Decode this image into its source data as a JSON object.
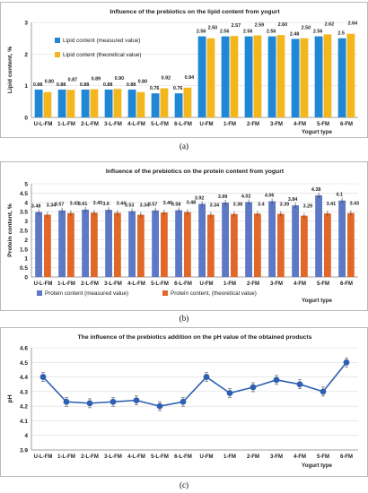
{
  "chart_data": [
    {
      "type": "bar",
      "title": "Influence of the prebiotics on the lipid content from yogurt",
      "xlabel": "Yogurt type",
      "ylabel": "Lipid content, %",
      "ylim": [
        0,
        3
      ],
      "yticks": [
        "0",
        "1",
        "2",
        "3"
      ],
      "categories": [
        "U-L-FM",
        "1-L-FM",
        "2-L-FM",
        "3-L-FM",
        "4-L-FM",
        "5-L-FM",
        "6-L-FM",
        "U-FM",
        "1-FM",
        "2-FM",
        "3-FM",
        "4-FM",
        "5-FM",
        "6-FM"
      ],
      "series": [
        {
          "name": "Lipid content (measured value)",
          "values": [
            0.88,
            0.88,
            0.88,
            0.88,
            0.88,
            0.76,
            0.76,
            2.56,
            2.56,
            2.56,
            2.56,
            2.48,
            2.56,
            2.5
          ],
          "labels": [
            "0.88",
            "0.88",
            "0.88",
            "0.88",
            "0.88",
            "0.76",
            "0.76",
            "2.56",
            "2.56",
            "2.56",
            "2.56",
            "2.48",
            "2.56",
            "2.5"
          ]
        },
        {
          "name": "Lipid content (theoretical value)",
          "values": [
            0.8,
            0.87,
            0.89,
            0.9,
            0.8,
            0.92,
            0.94,
            2.5,
            2.57,
            2.59,
            2.6,
            2.5,
            2.62,
            2.64
          ],
          "labels": [
            "0.80",
            "0.87",
            "0.89",
            "0.90",
            "0.80",
            "0.92",
            "0.94",
            "2.50",
            "2.57",
            "2.59",
            "2.60",
            "2.50",
            "2.62",
            "2.64"
          ]
        }
      ],
      "legend": "top-left",
      "caption": "(a)"
    },
    {
      "type": "bar",
      "title": "Influence of the prebiotics on the protein content from yogurt",
      "xlabel": "Yogurt type",
      "ylabel": "Protein content, %",
      "ylim": [
        0,
        5
      ],
      "yticks": [
        "0",
        "0.5",
        "1",
        "1.5",
        "2",
        "2.5",
        "3",
        "3.5",
        "4",
        "4.5",
        "5"
      ],
      "categories": [
        "U-L-FM",
        "1-L-FM",
        "2-L-FM",
        "3-L-FM",
        "4-L-FM",
        "5-L-FM",
        "6-L-FM",
        "U-FM",
        "1-FM",
        "2-FM",
        "3-FM",
        "4-FM",
        "5-FM",
        "6-FM"
      ],
      "series": [
        {
          "name": "Protein content (measured value)",
          "values": [
            3.48,
            3.57,
            3.61,
            3.6,
            3.53,
            3.57,
            3.58,
            3.92,
            3.99,
            4.02,
            4.06,
            3.84,
            4.38,
            4.1
          ],
          "labels": [
            "3.48",
            "3.57",
            "3.61",
            "3.6",
            "3.53",
            "3.57",
            "3.58",
            "3.92",
            "3.99",
            "4.02",
            "4.06",
            "3.84",
            "4.38",
            "4.1"
          ]
        },
        {
          "name": "Protein content,  (theoretical value)",
          "values": [
            3.34,
            3.43,
            3.45,
            3.44,
            3.34,
            3.46,
            3.48,
            3.34,
            3.38,
            3.4,
            3.39,
            3.29,
            3.41,
            3.43
          ],
          "labels": [
            "3.34",
            "3.43",
            "3.45",
            "3.44",
            "3.34",
            "3.46",
            "3.48",
            "3.34",
            "3.38",
            "3.4",
            "3.39",
            "3.29",
            "3.41",
            "3.43"
          ]
        }
      ],
      "legend": "bottom",
      "caption": "(b)"
    },
    {
      "type": "line",
      "title": "The influence of the prebiotics addition on the pH value of the obtained products",
      "xlabel": "Yogurt type",
      "ylabel": "pH",
      "ylim": [
        3.9,
        4.6
      ],
      "yticks": [
        "3.9",
        "4",
        "4.1",
        "4.2",
        "4.3",
        "4.4",
        "4.5",
        "4.6"
      ],
      "categories": [
        "U-L-FM",
        "1-L-FM",
        "2-L-FM",
        "3-L-FM",
        "4-L-FM",
        "5-L-FM",
        "6-L-FM",
        "U-FM",
        "1-FM",
        "2-FM",
        "3-FM",
        "4-FM",
        "5-FM",
        "6-FM"
      ],
      "series": [
        {
          "values": [
            4.4,
            4.23,
            4.22,
            4.23,
            4.24,
            4.2,
            4.23,
            4.4,
            4.29,
            4.33,
            4.38,
            4.35,
            4.3,
            4.5
          ]
        }
      ],
      "caption": "(c)"
    }
  ],
  "colors": {
    "lipid_measured": "#1f87d6",
    "lipid_theoretical": "#f3b61c",
    "protein_measured": "#5d78c4",
    "protein_theoretical": "#e2682a",
    "ph_line": "#2e5fb2"
  }
}
